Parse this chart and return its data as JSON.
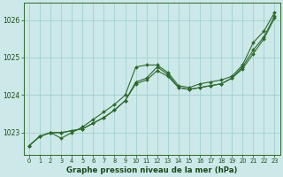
{
  "x": [
    0,
    1,
    2,
    3,
    4,
    5,
    6,
    7,
    8,
    9,
    10,
    11,
    12,
    13,
    14,
    15,
    16,
    17,
    18,
    19,
    20,
    21,
    22,
    23
  ],
  "line1": [
    1022.65,
    1022.9,
    1023.0,
    1022.85,
    1023.0,
    1023.15,
    1023.35,
    1023.55,
    1023.75,
    1024.0,
    1024.75,
    1024.8,
    1024.8,
    1024.6,
    1024.25,
    1024.2,
    1024.3,
    1024.35,
    1024.4,
    1024.5,
    1024.8,
    1025.4,
    1025.7,
    1026.2
  ],
  "line2": [
    1022.65,
    1022.9,
    1023.0,
    1023.0,
    1023.05,
    1023.1,
    1023.25,
    1023.4,
    1023.6,
    1023.85,
    1024.35,
    1024.45,
    1024.75,
    1024.55,
    1024.2,
    1024.15,
    1024.2,
    1024.25,
    1024.3,
    1024.45,
    1024.75,
    1025.2,
    1025.55,
    1026.1
  ],
  "line3": [
    1022.65,
    1022.9,
    1023.0,
    1023.0,
    1023.05,
    1023.1,
    1023.25,
    1023.4,
    1023.6,
    1023.85,
    1024.3,
    1024.4,
    1024.65,
    1024.5,
    1024.2,
    1024.15,
    1024.2,
    1024.25,
    1024.3,
    1024.45,
    1024.7,
    1025.1,
    1025.5,
    1026.05
  ],
  "line_color": "#2d6a2d",
  "bg_color": "#cce8e8",
  "grid_color": "#99cccc",
  "text_color": "#1a4a1a",
  "xlabel": "Graphe pression niveau de la mer (hPa)",
  "ylim": [
    1022.4,
    1026.45
  ],
  "yticks": [
    1023,
    1024,
    1025,
    1026
  ],
  "xticks": [
    0,
    1,
    2,
    3,
    4,
    5,
    6,
    7,
    8,
    9,
    10,
    11,
    12,
    13,
    14,
    15,
    16,
    17,
    18,
    19,
    20,
    21,
    22,
    23
  ]
}
